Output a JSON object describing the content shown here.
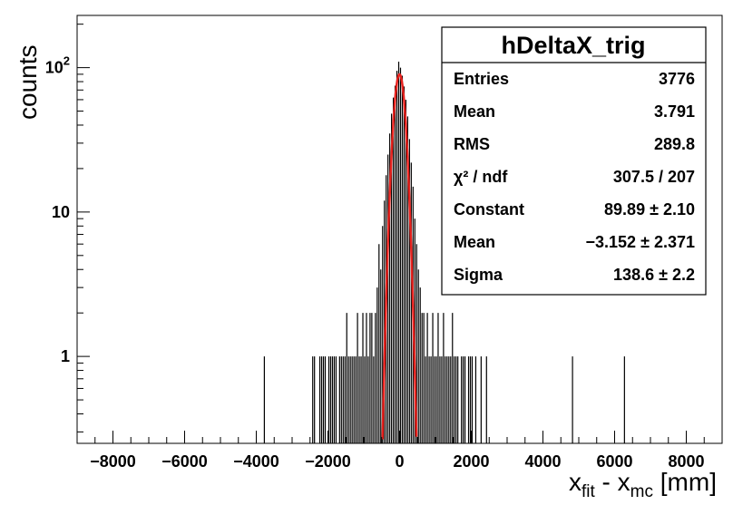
{
  "chart_data": {
    "type": "histogram",
    "title": "",
    "xlabel_main": "x",
    "xlabel_sub1": "fit",
    "xlabel_mid": " - x",
    "xlabel_sub2": "mc",
    "xlabel_unit": " [mm]",
    "ylabel": "counts",
    "xlim": [
      -9000,
      9000
    ],
    "ylim": [
      0.25,
      230
    ],
    "yscale": "log",
    "x_ticks": [
      -8000,
      -6000,
      -4000,
      -2000,
      0,
      2000,
      4000,
      6000,
      8000
    ],
    "x_tick_labels": [
      "−8000",
      "−6000",
      "−4000",
      "−2000",
      "0",
      "2000",
      "4000",
      "6000",
      "8000"
    ],
    "y_ticks": [
      1,
      10,
      100
    ],
    "y_tick_label_1": "1",
    "y_tick_label_10": "10",
    "y_tick_label_100_base": "10",
    "y_tick_label_100_exp": "2",
    "bin_width": 25,
    "histogram": {
      "x": [
        -3775,
        -2425,
        -2375,
        -2225,
        -2175,
        -2125,
        -2075,
        -1975,
        -1925,
        -1875,
        -1825,
        -1775,
        -1675,
        -1625,
        -1575,
        -1525,
        -1475,
        -1425,
        -1375,
        -1325,
        -1275,
        -1225,
        -1175,
        -1125,
        -1075,
        -1025,
        -975,
        -925,
        -875,
        -825,
        -775,
        -725,
        -675,
        -625,
        -575,
        -525,
        -475,
        -425,
        -375,
        -325,
        -275,
        -225,
        -175,
        -125,
        -75,
        -25,
        25,
        75,
        125,
        175,
        225,
        275,
        325,
        375,
        425,
        475,
        525,
        575,
        625,
        675,
        725,
        775,
        825,
        875,
        925,
        975,
        1025,
        1075,
        1125,
        1175,
        1225,
        1275,
        1325,
        1375,
        1425,
        1475,
        1525,
        1575,
        1625,
        1725,
        1775,
        1825,
        1925,
        1975,
        2025,
        2125,
        2275,
        2425,
        4825,
        6275
      ],
      "counts": [
        1,
        1,
        1,
        1,
        1,
        1,
        1,
        1,
        1,
        1,
        1,
        1,
        1,
        1,
        1,
        1,
        2,
        1,
        1,
        1,
        1,
        1,
        2,
        1,
        1,
        2,
        1,
        2,
        1,
        2,
        2,
        1,
        2,
        3,
        6,
        4,
        8,
        12,
        18,
        25,
        35,
        48,
        62,
        75,
        95,
        110,
        100,
        88,
        74,
        60,
        46,
        32,
        22,
        15,
        9,
        6,
        4,
        3,
        2,
        2,
        1,
        2,
        1,
        1,
        2,
        1,
        1,
        2,
        1,
        1,
        2,
        1,
        1,
        1,
        1,
        2,
        1,
        1,
        1,
        1,
        1,
        1,
        1,
        1,
        1,
        1,
        1,
        1,
        1,
        1
      ]
    },
    "fit": {
      "function": "gaus",
      "color": "#e8231f",
      "constant": 89.89,
      "mean": -3.152,
      "sigma": 138.6,
      "x_range": [
        -620,
        610
      ]
    },
    "stats_box": {
      "title": "hDeltaX_trig",
      "placement": "top-right",
      "rows": [
        {
          "label": "Entries",
          "value": "3776"
        },
        {
          "label": "Mean",
          "value": "3.791"
        },
        {
          "label": "RMS",
          "value": "289.8"
        },
        {
          "label": "χ² / ndf",
          "value": "307.5 / 207"
        },
        {
          "label": "Constant",
          "value": "89.89 ± 2.10"
        },
        {
          "label": "Mean",
          "value": "−3.152 ± 2.371"
        },
        {
          "label": "Sigma",
          "value": "138.6 ± 2.2"
        }
      ]
    }
  }
}
